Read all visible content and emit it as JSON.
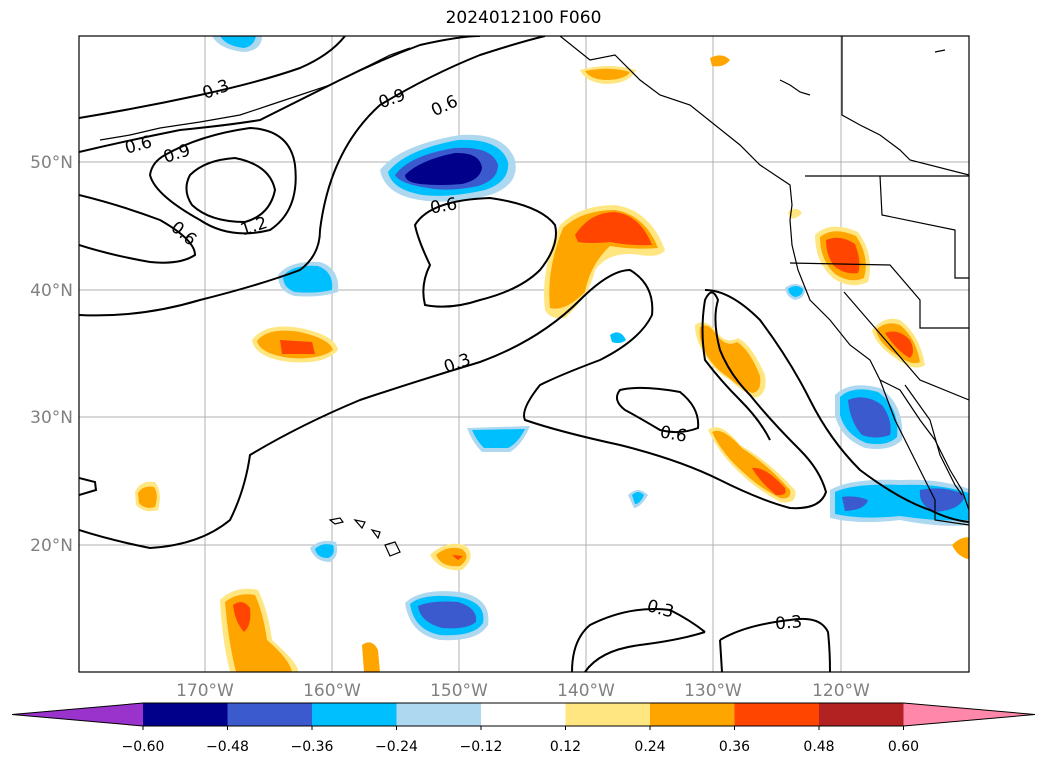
{
  "title": "2024012100 F060",
  "map": {
    "lat_labels": [
      "50°N",
      "40°N",
      "30°N",
      "20°N"
    ],
    "lon_labels": [
      "170°W",
      "160°W",
      "150°W",
      "140°W",
      "130°W",
      "120°W"
    ],
    "contour_labels": [
      "0.3",
      "0.6",
      "0.9",
      "0.6",
      "0.9",
      "1.2",
      "0.6",
      "0.6",
      "0.3",
      "0.6",
      "0.3",
      "0.3"
    ]
  },
  "colorbar": {
    "ticks": [
      "−0.60",
      "−0.48",
      "−0.36",
      "−0.24",
      "−0.12",
      "0.12",
      "0.24",
      "0.36",
      "0.48",
      "0.60"
    ],
    "colors": [
      "#9933cc",
      "#00008b",
      "#3a5acd",
      "#00bfff",
      "#add8f0",
      "#ffffff",
      "#ffe680",
      "#ffa500",
      "#ff4500",
      "#b22222",
      "#ff88aa"
    ]
  }
}
